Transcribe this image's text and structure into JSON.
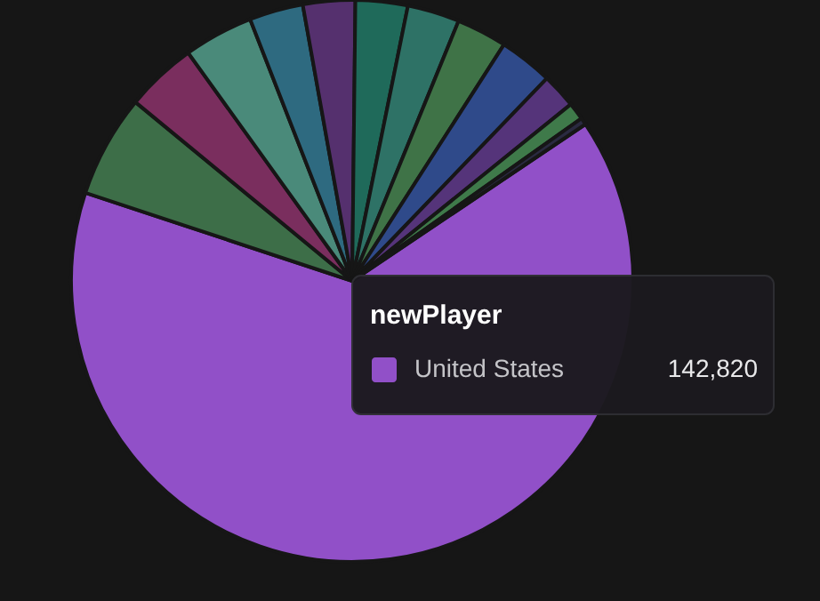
{
  "chart_data": {
    "type": "pie",
    "title": "newPlayer",
    "categories": [
      "United States",
      null,
      null,
      null,
      null,
      null,
      null,
      null,
      null,
      null,
      null,
      null,
      null
    ],
    "values": [
      64.5,
      5.9,
      4.1,
      4.0,
      3.1,
      3.0,
      3.0,
      3.0,
      2.9,
      3.1,
      2.0,
      1.0,
      0.4
    ],
    "annotations": [
      "142,820"
    ],
    "colors": [
      "#9150c8",
      "#3d6e48",
      "#7a2e5e",
      "#4a8a7a",
      "#2e6a80",
      "#55306e",
      "#1f6a5a",
      "#2e7266",
      "#3f7347",
      "#2f4a8a",
      "#55347a",
      "#3f7a4a",
      "#2a2a40"
    ],
    "legend": "right"
  }
}
